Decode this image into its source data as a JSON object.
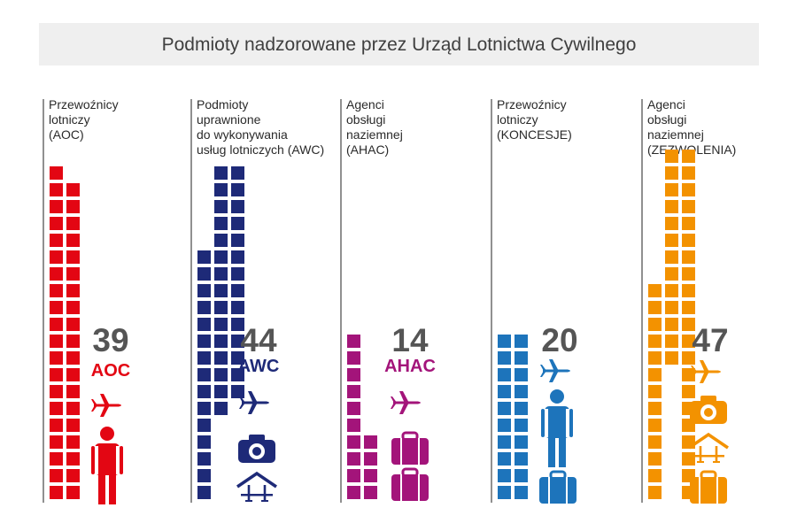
{
  "chart_data": {
    "type": "bar",
    "title": "Podmioty nadzorowane przez Urząd Lotnictwa Cywilnego",
    "unit_note": "each square = 1 entity",
    "categories": [
      {
        "label_lines": [
          "Przewoźnicy",
          "lotniczy",
          "(AOC)"
        ],
        "value": 39,
        "code": "AOC",
        "color": "#e30613",
        "icons": [
          "plane-icon",
          "person-icon"
        ]
      },
      {
        "label_lines": [
          "Podmioty",
          "uprawnione",
          "do wykonywania",
          "usług lotniczych (AWC)"
        ],
        "value": 44,
        "code": "AWC",
        "color": "#1e2a78",
        "icons": [
          "plane-icon",
          "camera-icon",
          "hangar-icon"
        ]
      },
      {
        "label_lines": [
          "Agenci",
          "obsługi",
          "naziemnej",
          "(AHAC)"
        ],
        "value": 14,
        "code": "AHAC",
        "color": "#a3147a",
        "icons": [
          "plane-icon",
          "suitcase-icon",
          "suitcase-icon"
        ]
      },
      {
        "label_lines": [
          "Przewoźnicy",
          "lotniczy",
          "(KONCESJE)"
        ],
        "value": 20,
        "code": "",
        "color": "#1d74bb",
        "icons": [
          "plane-icon",
          "person-icon",
          "suitcase-icon"
        ]
      },
      {
        "label_lines": [
          "Agenci",
          "obsługi",
          "naziemnej",
          "(ZEZWOLENIA)"
        ],
        "value": 47,
        "code": "",
        "color": "#f39200",
        "icons": [
          "plane-icon",
          "camera-icon",
          "hangar-icon",
          "suitcase-icon"
        ]
      }
    ]
  }
}
